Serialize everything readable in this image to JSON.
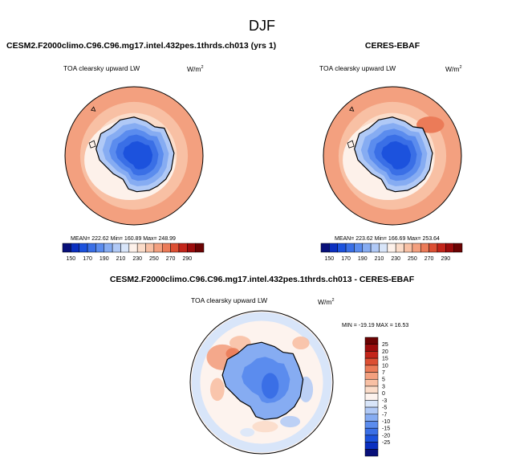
{
  "figure_title": "DJF",
  "panel_top_left": {
    "title": "CESM2.F2000climo.C96.C96.mg17.intel.432pes.1thrds.ch013 (yrs 1)",
    "field_label": "TOA clearsky upward LW",
    "units": "W/m",
    "units_exp": "2",
    "stats": "MEAN= 222.62   Min= 160.89   Max= 248.99"
  },
  "panel_top_right": {
    "title": "CERES-EBAF",
    "field_label": "TOA clearsky upward LW",
    "units": "W/m",
    "units_exp": "2",
    "stats": "MEAN= 223.62   Min= 166.69   Max= 253.64"
  },
  "panel_bottom": {
    "title": "CESM2.F2000climo.C96.C96.mg17.intel.432pes.1thrds.ch013 - CERES-EBAF",
    "field_label": "TOA clearsky upward LW",
    "units": "W/m",
    "units_exp": "2",
    "stats": "MIN = -19.19  MAX =  16.53"
  },
  "colors": {
    "abs_scale": [
      "#08107a",
      "#0a2fc0",
      "#1c52dd",
      "#3a6fe6",
      "#5b8cee",
      "#86acf2",
      "#b0c9f6",
      "#d8e5f9",
      "#fdf1ea",
      "#fbdcc9",
      "#f8c0a4",
      "#f3a07f",
      "#eb7b58",
      "#dc4f33",
      "#c3251a",
      "#9c0c0c",
      "#6b0303"
    ],
    "diff_scale": [
      "#08107a",
      "#0a2fc0",
      "#1c52dd",
      "#3a6fe6",
      "#5b8cee",
      "#86acf2",
      "#b0c9f6",
      "#d8e5f9",
      "#fdf3ee",
      "#fbdcc9",
      "#f8c0a4",
      "#f3a07f",
      "#eb7b58",
      "#dc4f33",
      "#c3251a",
      "#9c0c0c",
      "#6b0303"
    ],
    "coast": "#000000"
  },
  "chart_data": [
    {
      "type": "heatmap",
      "subtype": "polar stereographic map (Southern Hemisphere)",
      "title": "CESM2.F2000climo.C96.C96.mg17.intel.432pes.1thrds.ch013 (yrs 1)",
      "field": "TOA clearsky upward LW",
      "units": "W/m2",
      "mean": 222.62,
      "min": 160.89,
      "max": 248.99,
      "colorbar_ticks": [
        150,
        170,
        190,
        210,
        230,
        250,
        270,
        290
      ],
      "colorbar_orientation": "horizontal"
    },
    {
      "type": "heatmap",
      "subtype": "polar stereographic map (Southern Hemisphere)",
      "title": "CERES-EBAF",
      "field": "TOA clearsky upward LW",
      "units": "W/m2",
      "mean": 223.62,
      "min": 166.69,
      "max": 253.64,
      "colorbar_ticks": [
        150,
        170,
        190,
        210,
        230,
        250,
        270,
        290
      ],
      "colorbar_orientation": "horizontal"
    },
    {
      "type": "heatmap",
      "subtype": "polar stereographic map (Southern Hemisphere), difference",
      "title": "CESM2.F2000climo.C96.C96.mg17.intel.432pes.1thrds.ch013 - CERES-EBAF",
      "field": "TOA clearsky upward LW",
      "units": "W/m2",
      "min": -19.19,
      "max": 16.53,
      "colorbar_ticks": [
        25,
        20,
        15,
        10,
        7,
        5,
        3,
        0,
        -3,
        -5,
        -7,
        -10,
        -15,
        -20,
        -25
      ],
      "colorbar_orientation": "vertical"
    }
  ]
}
